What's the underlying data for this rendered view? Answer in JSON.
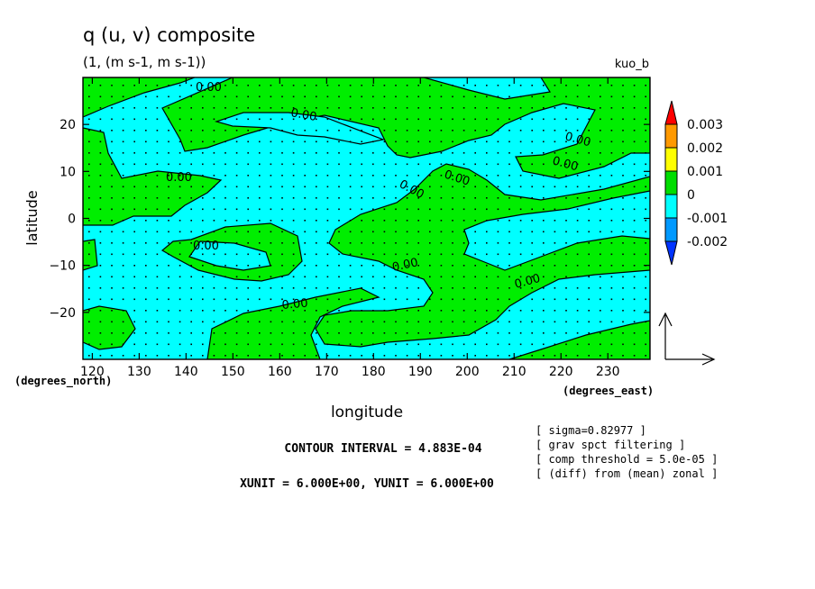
{
  "title": "q (u, v) composite",
  "subtitle": "(1, (m s-1, m s-1))",
  "run_name": "kuo_b",
  "chart_data": {
    "type": "heatmap",
    "subtype": "filled contour map with vector field",
    "xlabel": "longitude",
    "ylabel": "latitude",
    "x_unit_label": "(degrees_east)",
    "y_unit_label": "(degrees_north)",
    "xlim": [
      118,
      239
    ],
    "ylim": [
      -30,
      30
    ],
    "x_ticks": [
      120,
      130,
      140,
      150,
      160,
      170,
      180,
      190,
      200,
      210,
      220,
      230
    ],
    "y_ticks": [
      -20,
      -10,
      0,
      10,
      20
    ],
    "contour_labels": [
      "0.00",
      "0.00",
      "0.00",
      "0.00",
      "0.00",
      "0.00",
      "0.00",
      "0.00",
      "0.00",
      "0.00",
      "0.00"
    ],
    "colorbar": {
      "labels": [
        "0.003",
        "0.002",
        "0.001",
        "0",
        "-0.001",
        "-0.002"
      ],
      "colors": [
        "#ff0000",
        "#ff9900",
        "#ffff00",
        "#00dd00",
        "#00ffff",
        "#0099ff",
        "#0033ff"
      ]
    },
    "fill_colors": {
      "positive": "#00ee00",
      "negative": "#00ffff"
    }
  },
  "annotations": {
    "contour_interval": "CONTOUR INTERVAL = 4.883E-04",
    "units": "XUNIT = 6.000E+00, YUNIT = 6.000E+00",
    "notes": [
      "[ sigma=0.82977 ]",
      "[ grav spct filtering ]",
      "[ comp threshold = 5.0e-05 ]",
      "[ (diff) from (mean) zonal ]"
    ]
  }
}
